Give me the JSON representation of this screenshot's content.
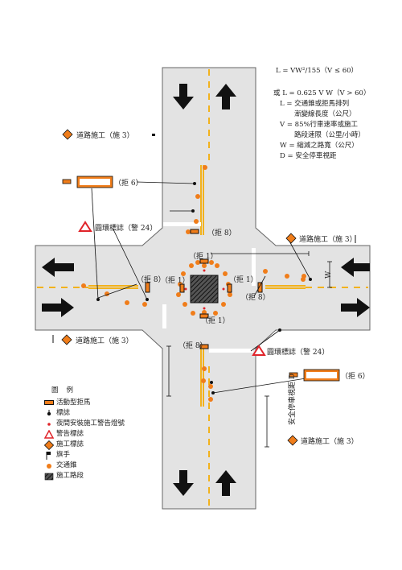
{
  "formula": {
    "line1": "L = VW²/155（V ≤ 60）",
    "line2": "或 L = 0.625 V W（V > 60）",
    "line3": "L = 交通錐或拒馬排列",
    "line4": "漸變線長度（公尺）",
    "line5": "V = 85%行車速率或施工",
    "line6": "路段速限（公里/小時）",
    "line7": "W = 縮減之路寬（公尺）",
    "line8": "D = 安全停車視距"
  },
  "labels": {
    "construction_sign": "道路施工（施 3）",
    "barrier_6": "（拒 6）",
    "barrier_8": "（拒 8）",
    "barrier_1": "（拒 1）",
    "roundabout_sign": "圓環標誌（警 24）",
    "w_mark": "W",
    "d_mark": "D",
    "safe_distance": "安全停車視距 D"
  },
  "legend": {
    "title": "圖例",
    "items": [
      {
        "icon": "barrier-icon",
        "label": "活動型拒馬"
      },
      {
        "icon": "sign-post-icon",
        "label": "標誌"
      },
      {
        "icon": "night-light-icon",
        "label": "夜間安裝施工警告燈號"
      },
      {
        "icon": "warning-sign-icon",
        "label": "警告標誌"
      },
      {
        "icon": "construction-sign-icon",
        "label": "施工標誌"
      },
      {
        "icon": "flagman-icon",
        "label": "旗手"
      },
      {
        "icon": "cone-icon",
        "label": "交通錐"
      },
      {
        "icon": "work-zone-icon",
        "label": "施工路段"
      }
    ]
  },
  "colors": {
    "road": "#e3e3e3",
    "road_edge": "#555555",
    "center_line": "#f2b21c",
    "cone": "#f07d1a",
    "sign": "#f07d1a",
    "warning_red": "#e0242a"
  }
}
